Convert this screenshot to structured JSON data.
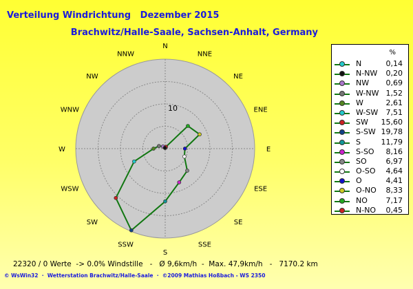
{
  "header": {
    "title": "Verteilung Windrichtung   Dezember 2015",
    "subtitle": "Brachwitz/Halle-Saale, Sachsen-Anhalt, Germany"
  },
  "chart_data": {
    "type": "radar",
    "directions": [
      "N",
      "NNE",
      "NE",
      "ENE",
      "E",
      "ESE",
      "SE",
      "SSE",
      "S",
      "SSW",
      "SW",
      "WSW",
      "W",
      "WNW",
      "NW",
      "NNW"
    ],
    "ring_label": "10",
    "rmax": 20,
    "series_color": "#117711",
    "values": [
      0.14,
      0.45,
      7.17,
      8.33,
      4.41,
      4.64,
      6.97,
      8.16,
      11.79,
      19.78,
      15.6,
      7.51,
      2.61,
      1.52,
      0.69,
      0.2
    ],
    "legend_title": "%",
    "legend": [
      {
        "name": "N",
        "value": "0,14",
        "color": "#22cccc"
      },
      {
        "name": "N-NW",
        "value": "0,20",
        "color": "#111111"
      },
      {
        "name": "NW",
        "value": "0,69",
        "color": "#aa77cc"
      },
      {
        "name": "W-NW",
        "value": "1,52",
        "color": "#777777"
      },
      {
        "name": "W",
        "value": "2,61",
        "color": "#558822"
      },
      {
        "name": "W-SW",
        "value": "7,51",
        "color": "#22cccc"
      },
      {
        "name": "SW",
        "value": "15,60",
        "color": "#cc2222"
      },
      {
        "name": "S-SW",
        "value": "19,78",
        "color": "#114488"
      },
      {
        "name": "S",
        "value": "11,79",
        "color": "#119999"
      },
      {
        "name": "S-SO",
        "value": "8,16",
        "color": "#cc22cc"
      },
      {
        "name": "SO",
        "value": "6,97",
        "color": "#888888"
      },
      {
        "name": "O-SO",
        "value": "4,64",
        "color": "#ffffff"
      },
      {
        "name": "O",
        "value": "4,41",
        "color": "#1111cc"
      },
      {
        "name": "O-NO",
        "value": "8,33",
        "color": "#cccc22"
      },
      {
        "name": "NO",
        "value": "7,17",
        "color": "#22aa22"
      },
      {
        "name": "N-NO",
        "value": "0,45",
        "color": "#cc2222"
      }
    ]
  },
  "stats": "22320 / 0 Werte  -> 0.0% Windstille   -   Ø 9,6km/h  -  Max. 47,9km/h   -   7170.2 km",
  "footer": "© WsWin32  ·  Wetterstation Brachwitz/Halle-Saale  ·  ©2009 Mathias Hoßbach - WS 2350"
}
